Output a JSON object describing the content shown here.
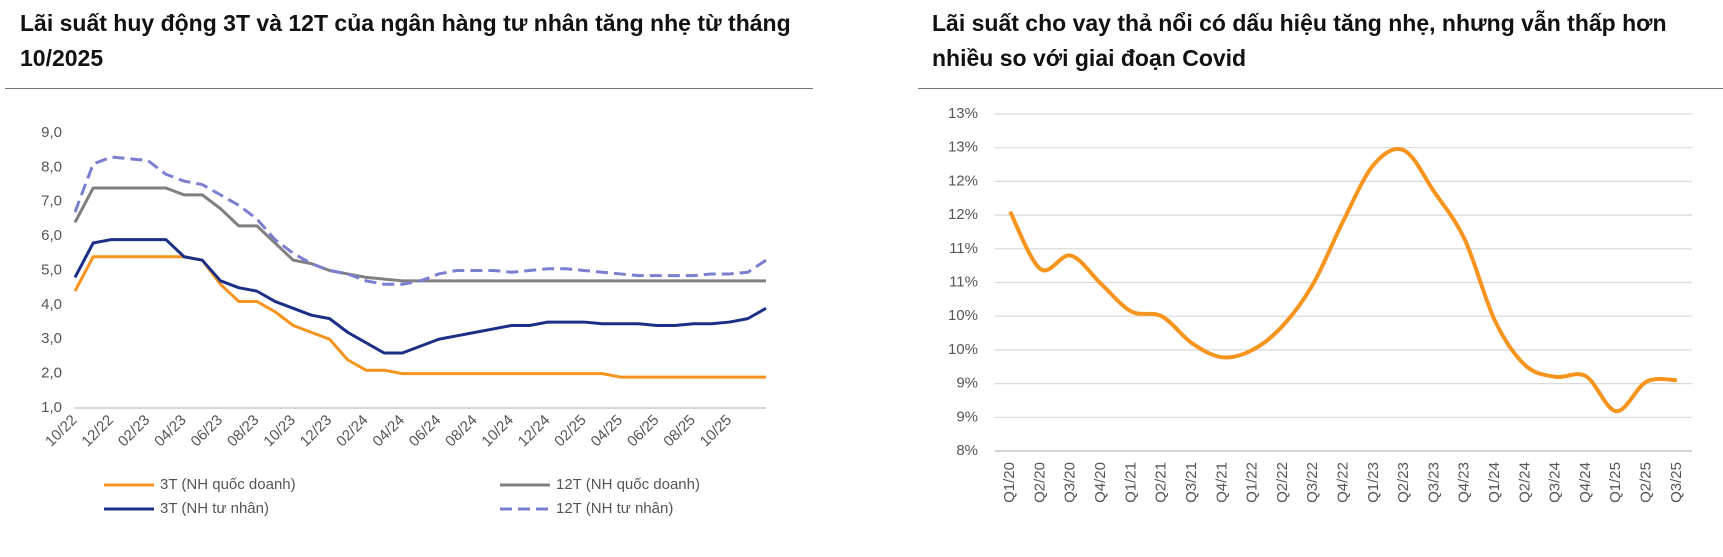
{
  "chart_data": [
    {
      "type": "line",
      "title": "Lãi suất huy động 3T và 12T của ngân hàng tư nhân tăng nhẹ từ tháng 10/2025",
      "categories": [
        "10/22",
        null,
        "12/22",
        null,
        "02/23",
        null,
        "04/23",
        null,
        "06/23",
        null,
        "08/23",
        null,
        "10/23",
        null,
        "12/23",
        null,
        "02/24",
        null,
        "04/24",
        null,
        "06/24",
        null,
        "08/24",
        null,
        "10/24",
        null,
        "12/24",
        null,
        "02/25",
        null,
        "04/25",
        null,
        "06/25",
        null,
        "08/25",
        null,
        "10/25",
        null,
        null
      ],
      "series": [
        {
          "name": "3T (NH quốc doanh)",
          "color": "#f7941d",
          "line_style": "solid",
          "values": [
            4.4,
            5.4,
            5.4,
            5.4,
            5.4,
            5.4,
            5.4,
            5.3,
            4.6,
            4.1,
            4.1,
            3.8,
            3.4,
            3.2,
            3.0,
            2.4,
            2.1,
            2.1,
            2.0,
            2.0,
            2.0,
            2.0,
            2.0,
            2.0,
            2.0,
            2.0,
            2.0,
            2.0,
            2.0,
            2.0,
            1.9,
            1.9,
            1.9,
            1.9,
            1.9,
            1.9,
            1.9,
            1.9,
            1.9
          ]
        },
        {
          "name": "12T (NH quốc doanh)",
          "color": "#808080",
          "line_style": "solid",
          "values": [
            6.4,
            7.4,
            7.4,
            7.4,
            7.4,
            7.4,
            7.2,
            7.2,
            6.8,
            6.3,
            6.3,
            5.8,
            5.3,
            5.2,
            5.0,
            4.9,
            4.8,
            4.75,
            4.7,
            4.7,
            4.7,
            4.7,
            4.7,
            4.7,
            4.7,
            4.7,
            4.7,
            4.7,
            4.7,
            4.7,
            4.7,
            4.7,
            4.7,
            4.7,
            4.7,
            4.7,
            4.7,
            4.7,
            4.7
          ]
        },
        {
          "name": "3T (NH tư nhân)",
          "color": "#1b2f87",
          "line_style": "solid",
          "values": [
            4.8,
            5.8,
            5.9,
            5.9,
            5.9,
            5.9,
            5.4,
            5.3,
            4.7,
            4.5,
            4.4,
            4.1,
            3.9,
            3.7,
            3.6,
            3.2,
            2.9,
            2.6,
            2.6,
            2.8,
            3.0,
            3.1,
            3.2,
            3.3,
            3.4,
            3.4,
            3.5,
            3.5,
            3.5,
            3.45,
            3.45,
            3.45,
            3.4,
            3.4,
            3.45,
            3.45,
            3.5,
            3.6,
            3.9
          ]
        },
        {
          "name": "12T (NH tư nhân)",
          "color": "#7b7fd0",
          "line_style": "dashed",
          "values": [
            6.7,
            8.1,
            8.3,
            8.25,
            8.2,
            7.8,
            7.6,
            7.5,
            7.2,
            6.9,
            6.5,
            5.9,
            5.5,
            5.2,
            5.0,
            4.9,
            4.7,
            4.6,
            4.6,
            4.7,
            4.9,
            5.0,
            5.0,
            5.0,
            4.95,
            5.0,
            5.05,
            5.05,
            5.0,
            4.95,
            4.9,
            4.85,
            4.85,
            4.85,
            4.85,
            4.9,
            4.9,
            4.95,
            5.3
          ]
        }
      ],
      "ylim": [
        1,
        9
      ],
      "yticks": [
        {
          "value": 1,
          "label": "1,0"
        },
        {
          "value": 2,
          "label": "2,0"
        },
        {
          "value": 3,
          "label": "3,0"
        },
        {
          "value": 4,
          "label": "4,0"
        },
        {
          "value": 5,
          "label": "5,0"
        },
        {
          "value": 6,
          "label": "6,0"
        },
        {
          "value": 7,
          "label": "7,0"
        },
        {
          "value": 8,
          "label": "8,0"
        },
        {
          "value": 9,
          "label": "9,0"
        }
      ],
      "grid": false,
      "legend": "bottom"
    },
    {
      "type": "line",
      "title": "Lãi suất cho vay thả nổi có dấu hiệu tăng nhẹ, nhưng vẫn thấp hơn nhiều so với giai đoạn Covid",
      "categories": [
        "Q1/20",
        "Q2/20",
        "Q3/20",
        "Q4/20",
        "Q1/21",
        "Q2/21",
        "Q3/21",
        "Q4/21",
        "Q1/22",
        "Q2/22",
        "Q3/22",
        "Q4/22",
        "Q1/23",
        "Q2/23",
        "Q3/23",
        "Q4/23",
        "Q1/24",
        "Q2/24",
        "Q3/24",
        "Q4/24",
        "Q1/25",
        "Q2/25",
        "Q3/25"
      ],
      "values": [
        11.55,
        10.7,
        10.9,
        10.48,
        10.07,
        10.0,
        9.6,
        9.39,
        9.5,
        9.86,
        10.48,
        11.42,
        12.25,
        12.46,
        11.84,
        11.14,
        9.93,
        9.27,
        9.1,
        9.11,
        8.59,
        9.03,
        9.05
      ],
      "color": "#f7941d",
      "smooth": true,
      "ylim": [
        8,
        13
      ],
      "yticks": [
        {
          "value": 8,
          "label": "8%"
        },
        {
          "value": 8.5,
          "label": "9%"
        },
        {
          "value": 9,
          "label": "9%"
        },
        {
          "value": 9.5,
          "label": "10%"
        },
        {
          "value": 10,
          "label": "10%"
        },
        {
          "value": 10.5,
          "label": "11%"
        },
        {
          "value": 11,
          "label": "11%"
        },
        {
          "value": 11.5,
          "label": "12%"
        },
        {
          "value": 12,
          "label": "12%"
        },
        {
          "value": 12.5,
          "label": "13%"
        },
        {
          "value": 13,
          "label": "13%"
        }
      ],
      "grid": true
    }
  ]
}
